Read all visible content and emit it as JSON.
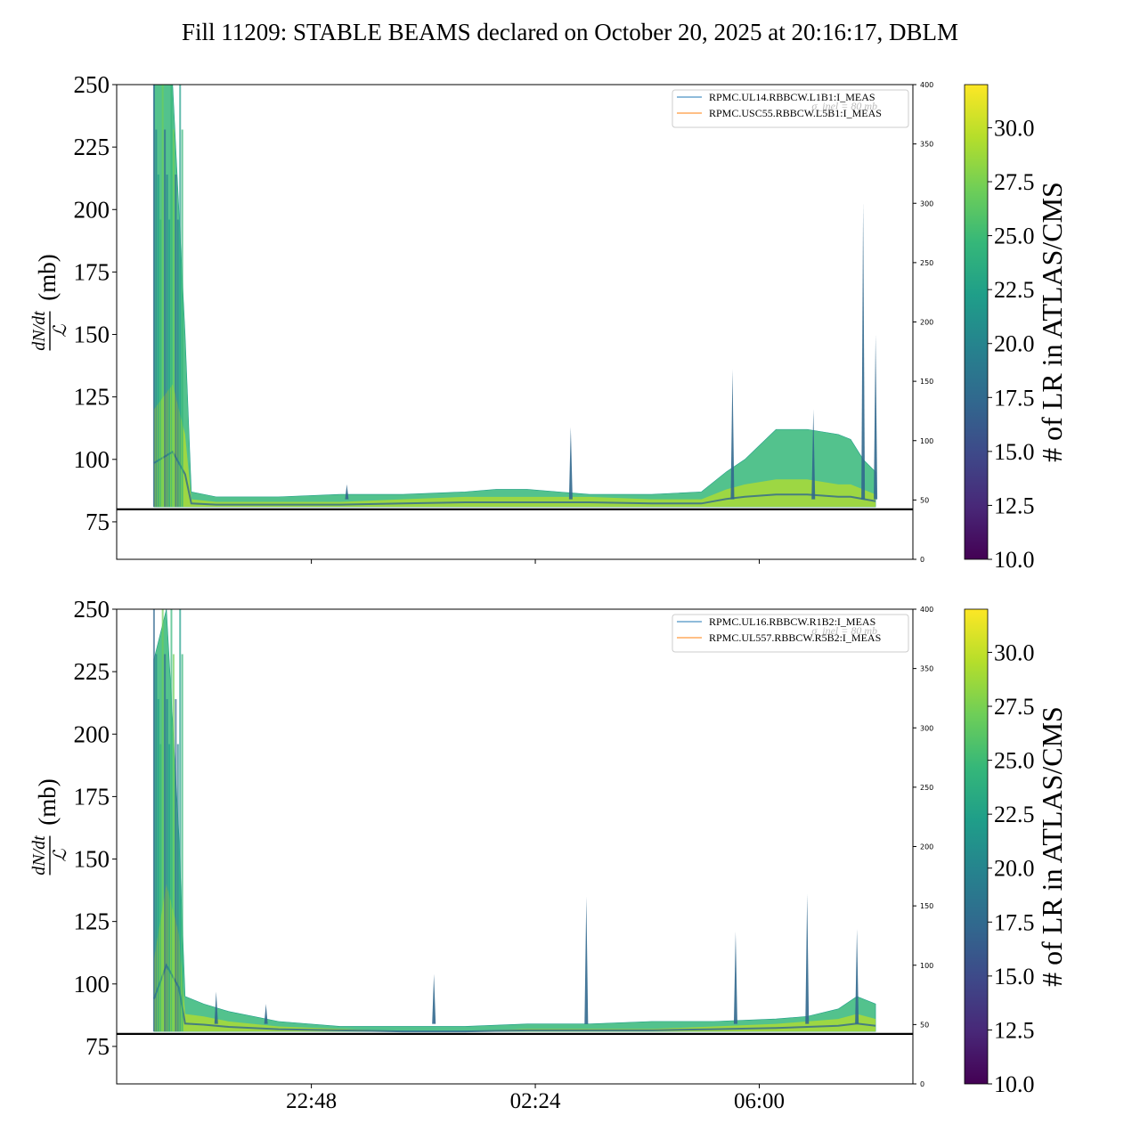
{
  "title": "Fill 11209: STABLE BEAMS declared on October 20, 2025 at 20:16:17, DBLM",
  "colors": {
    "viridis": [
      "#440154",
      "#482878",
      "#3e4989",
      "#31688e",
      "#26828e",
      "#1f9e89",
      "#35b779",
      "#6ece58",
      "#b5de2b",
      "#fde725"
    ],
    "reference_line": "#000000",
    "legend_line_1": "#1f77b4",
    "legend_line_2": "#ff7f0e"
  },
  "x_axis": {
    "tick_labels": [
      "22:48",
      "02:24",
      "06:00"
    ],
    "tick_hours": [
      2.53,
      6.13,
      9.73
    ],
    "range_hours": [
      -0.6,
      12.2
    ]
  },
  "panels": [
    {
      "ylabel_fraction_top": "dN/dt",
      "ylabel_fraction_bottom": "ℒ",
      "ylabel_unit": "(mb)",
      "yticks": [
        "250",
        "225",
        "200",
        "175",
        "150",
        "125",
        "100",
        "75"
      ],
      "right_ticks": [
        "400",
        "350",
        "300",
        "250",
        "200",
        "150",
        "100",
        "50",
        "0"
      ],
      "legend": [
        "RPMC.UL14.RBBCW.L1B1:I_MEAS",
        "RPMC.USC55.RBBCW.L5B1:I_MEAS"
      ],
      "ghost_label": "σ_inel = 80 mb",
      "colorbar_ticks": [
        "30.0",
        "27.5",
        "25.0",
        "22.5",
        "20.0",
        "17.5",
        "15.0",
        "12.5",
        "10.0"
      ],
      "colorbar_label": "# of LR in ATLAS/CMS"
    },
    {
      "ylabel_fraction_top": "dN/dt",
      "ylabel_fraction_bottom": "ℒ",
      "ylabel_unit": "(mb)",
      "yticks": [
        "250",
        "225",
        "200",
        "175",
        "150",
        "125",
        "100",
        "75"
      ],
      "right_ticks": [
        "400",
        "350",
        "300",
        "250",
        "200",
        "150",
        "100",
        "50",
        "0"
      ],
      "legend": [
        "RPMC.UL16.RBBCW.R1B2:I_MEAS",
        "RPMC.UL557.RBBCW.R5B2:I_MEAS"
      ],
      "ghost_label": "σ_inel = 80 mb",
      "colorbar_ticks": [
        "30.0",
        "27.5",
        "25.0",
        "22.5",
        "20.0",
        "17.5",
        "15.0",
        "12.5",
        "10.0"
      ],
      "colorbar_label": "# of LR in ATLAS/CMS"
    }
  ],
  "chart_data": [
    {
      "type": "area",
      "title": "Fill 11209: STABLE BEAMS declared on October 20, 2025 at 20:16:17, DBLM",
      "xlabel": "",
      "ylabel": "dN/dt / ℒ (mb)",
      "ylim": [
        60,
        250
      ],
      "y2lim": [
        0,
        400
      ],
      "colorbar": {
        "label": "# of LR in ATLAS/CMS",
        "range": [
          10,
          32
        ]
      },
      "reference_line_y": 80,
      "x_hours": [
        0.0,
        0.3,
        0.5,
        0.6,
        1.0,
        2.0,
        3.0,
        4.0,
        5.0,
        5.5,
        6.0,
        6.5,
        7.0,
        8.0,
        8.8,
        9.2,
        9.5,
        10.0,
        10.5,
        11.0,
        11.2,
        11.4,
        11.6
      ],
      "series": [
        {
          "name": "upper envelope",
          "values": [
            250,
            250,
            150,
            87,
            85,
            85,
            86,
            86,
            87,
            88,
            88,
            87,
            86,
            86,
            87,
            95,
            100,
            112,
            112,
            110,
            108,
            100,
            95
          ]
        },
        {
          "name": "core band",
          "values": [
            120,
            130,
            110,
            84,
            83,
            83,
            83,
            84,
            85,
            85,
            85,
            85,
            85,
            84,
            84,
            88,
            90,
            92,
            92,
            90,
            90,
            88,
            86
          ]
        }
      ],
      "spikes": [
        {
          "x_hour": 3.1,
          "y": 90
        },
        {
          "x_hour": 6.7,
          "y": 113
        },
        {
          "x_hour": 9.3,
          "y": 136
        },
        {
          "x_hour": 10.6,
          "y": 120
        },
        {
          "x_hour": 11.4,
          "y": 203
        },
        {
          "x_hour": 11.6,
          "y": 150
        }
      ],
      "legend": [
        "RPMC.UL14.RBBCW.L1B1:I_MEAS",
        "RPMC.USC55.RBBCW.L5B1:I_MEAS"
      ]
    },
    {
      "type": "area",
      "title": "",
      "xlabel": "",
      "ylabel": "dN/dt / ℒ (mb)",
      "ylim": [
        60,
        250
      ],
      "y2lim": [
        0,
        400
      ],
      "colorbar": {
        "label": "# of LR in ATLAS/CMS",
        "range": [
          10,
          32
        ]
      },
      "reference_line_y": 80,
      "x_hours": [
        0.0,
        0.2,
        0.4,
        0.5,
        0.8,
        1.2,
        2.0,
        3.0,
        4.0,
        5.0,
        6.0,
        7.0,
        8.0,
        9.0,
        10.0,
        10.5,
        11.0,
        11.3,
        11.6
      ],
      "series": [
        {
          "name": "upper envelope",
          "values": [
            230,
            250,
            160,
            95,
            92,
            89,
            85,
            83,
            83,
            83,
            84,
            84,
            85,
            85,
            86,
            87,
            90,
            95,
            92
          ]
        },
        {
          "name": "core band",
          "values": [
            110,
            140,
            120,
            88,
            87,
            85,
            83,
            82,
            81,
            81,
            82,
            82,
            82,
            83,
            84,
            85,
            86,
            88,
            86
          ]
        }
      ],
      "spikes": [
        {
          "x_hour": 1.0,
          "y": 97
        },
        {
          "x_hour": 1.8,
          "y": 92
        },
        {
          "x_hour": 4.5,
          "y": 104
        },
        {
          "x_hour": 6.95,
          "y": 135
        },
        {
          "x_hour": 9.35,
          "y": 121
        },
        {
          "x_hour": 10.5,
          "y": 136
        },
        {
          "x_hour": 11.3,
          "y": 122
        }
      ],
      "legend": [
        "RPMC.UL16.RBBCW.R1B2:I_MEAS",
        "RPMC.UL557.RBBCW.R5B2:I_MEAS"
      ]
    }
  ]
}
